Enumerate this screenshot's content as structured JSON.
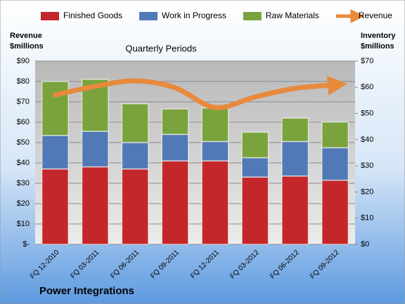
{
  "chart_data": {
    "type": "bar",
    "stacked": true,
    "title": "Quarterly Periods",
    "y_label": [
      "Revenue",
      "$millions"
    ],
    "y2_label": [
      "Inventory",
      "$millions"
    ],
    "footer": "Power Integrations",
    "categories": [
      "FQ 12-2010",
      "FQ 03-2011",
      "FQ 06-2011",
      "FQ 09-2011",
      "FQ 12-2011",
      "FQ 03-2012",
      "FQ 06-2012",
      "FQ 09-2012"
    ],
    "series": [
      {
        "name": "Finished Goods",
        "type": "bar",
        "axis": "y2",
        "color": "#c3272b",
        "values": [
          28.8,
          29.6,
          28.8,
          31.9,
          31.9,
          25.7,
          26.1,
          24.5
        ]
      },
      {
        "name": "Work in Progress",
        "type": "bar",
        "axis": "y2",
        "color": "#5079b5",
        "values": [
          12.8,
          13.6,
          10.1,
          10.1,
          7.4,
          7.4,
          13.2,
          12.4
        ]
      },
      {
        "name": "Raw Materials",
        "type": "bar",
        "axis": "y2",
        "color": "#7aa33d",
        "values": [
          20.6,
          19.8,
          14.8,
          9.7,
          12.8,
          9.7,
          8.9,
          9.8
        ]
      },
      {
        "name": "Revenue",
        "type": "line",
        "color": "#e8893c",
        "values": [
          73.4,
          77.6,
          80.3,
          76.9,
          67.2,
          72.4,
          76.6,
          78.3
        ]
      }
    ],
    "ylim": [
      0,
      90
    ],
    "yticks": [
      {
        "value": 0,
        "label": "$-"
      },
      {
        "value": 10,
        "label": "$10"
      },
      {
        "value": 20,
        "label": "$20"
      },
      {
        "value": 30,
        "label": "$30"
      },
      {
        "value": 40,
        "label": "$40"
      },
      {
        "value": 50,
        "label": "$50"
      },
      {
        "value": 60,
        "label": "$60"
      },
      {
        "value": 70,
        "label": "$70"
      },
      {
        "value": 80,
        "label": "$80"
      },
      {
        "value": 90,
        "label": "$90"
      }
    ],
    "y2lim": [
      0,
      70
    ],
    "y2ticks": [
      {
        "value": 0,
        "label": "$0"
      },
      {
        "value": 10,
        "label": "$10"
      },
      {
        "value": 20,
        "label": "$20"
      },
      {
        "value": 30,
        "label": "$30"
      },
      {
        "value": 40,
        "label": "$40"
      },
      {
        "value": 50,
        "label": "$50"
      },
      {
        "value": 60,
        "label": "$60"
      },
      {
        "value": 70,
        "label": "$70"
      }
    ],
    "grid": true,
    "legend": "top"
  }
}
